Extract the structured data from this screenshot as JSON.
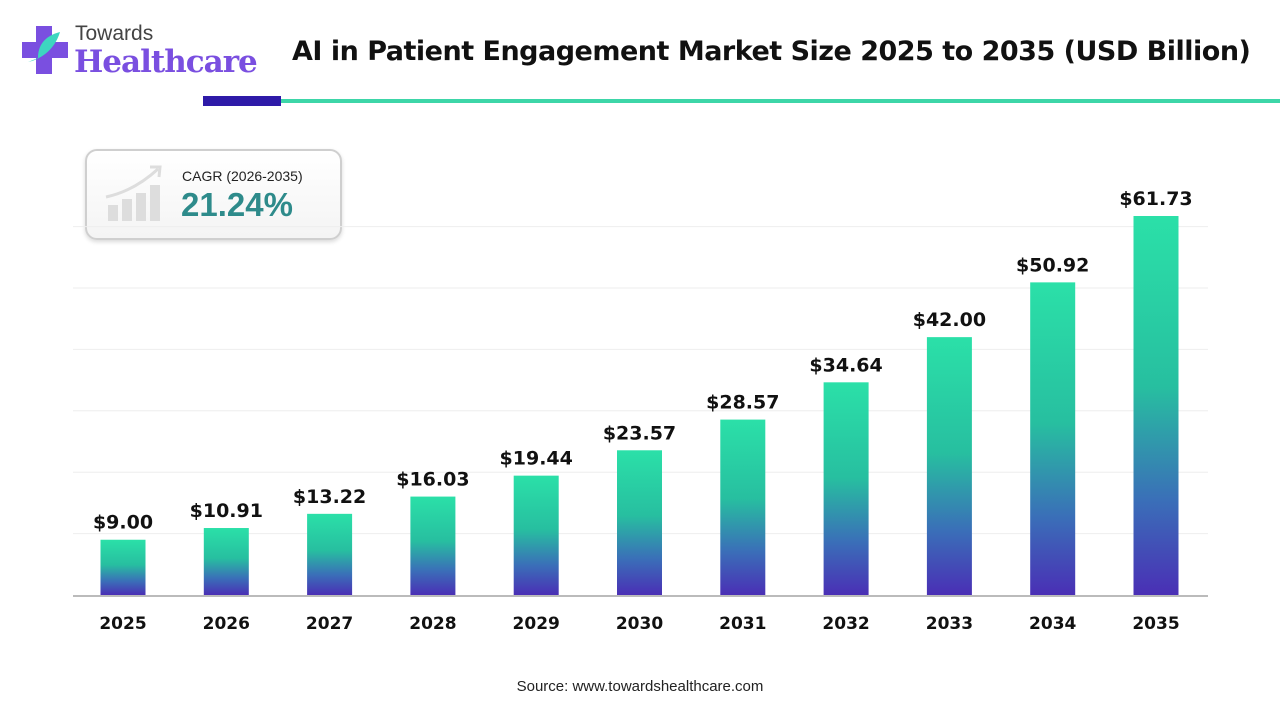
{
  "logo": {
    "line1": "Towards",
    "line2": "Healthcare"
  },
  "cagr": {
    "label": "CAGR (2026-2035)",
    "value": "21.24%"
  },
  "source": "Source: www.towardshealthcare.com",
  "colors": {
    "bar_top": "#2be0a8",
    "bar_bottom": "#4a2fb5",
    "accent_dark": "#2e1aa8",
    "accent_teal": "#3dd6a8"
  },
  "chart_data": {
    "type": "bar",
    "title": "AI in Patient Engagement Market Size 2025 to 2035 (USD Billion)",
    "categories": [
      "2025",
      "2026",
      "2027",
      "2028",
      "2029",
      "2030",
      "2031",
      "2032",
      "2033",
      "2034",
      "2035"
    ],
    "values": [
      9.0,
      10.91,
      13.22,
      16.03,
      19.44,
      23.57,
      28.57,
      34.64,
      42.0,
      50.92,
      61.73
    ],
    "labels": [
      "$9.00",
      "$10.91",
      "$13.22",
      "$16.03",
      "$19.44",
      "$23.57",
      "$28.57",
      "$34.64",
      "$42.00",
      "$50.92",
      "$61.73"
    ],
    "xlabel": "",
    "ylabel": "",
    "ylim": [
      0,
      62
    ],
    "grid": true
  }
}
